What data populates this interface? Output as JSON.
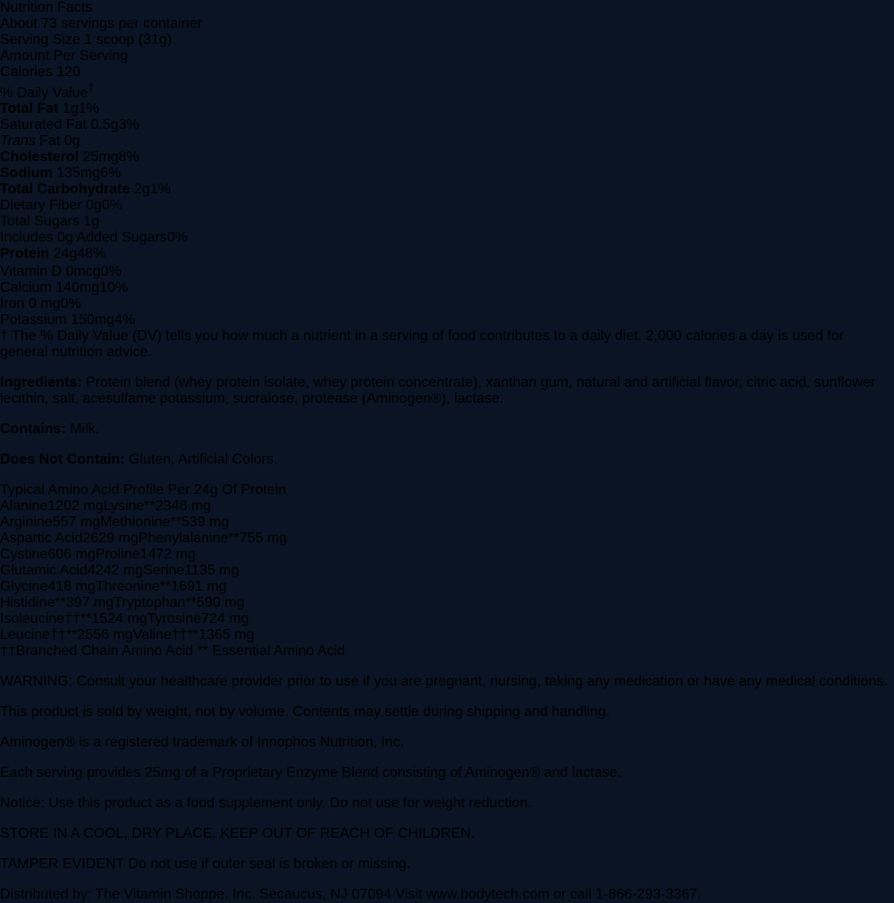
{
  "colors": {
    "background_navy": "#101e31",
    "background_band_blue": "#2d688f",
    "panel_navy": "#121e2e",
    "panel_border_white": "#ffffff",
    "table_row_gray": "#d4d5d0",
    "table_text_dark": "#141d29",
    "text_white": "#f2f5f8"
  },
  "nutrition_panel": {
    "title": "Nutrition Facts",
    "servings": "About 73 servings per container",
    "serving_size_label": "Serving Size",
    "serving_size_value": "1 scoop (31g)",
    "amount_per_serving": "Amount Per Serving",
    "calories_label": "Calories",
    "calories_value": "120",
    "daily_value_header": "% Daily Value",
    "daily_value_dagger": "†",
    "rows": [
      {
        "bold": "Total Fat",
        "text": " 1g",
        "pct": "1%",
        "indent": 0
      },
      {
        "text": "Saturated Fat 0.5g",
        "pct": "3%",
        "indent": 1
      },
      {
        "italic": "Trans",
        "text": " Fat 0g",
        "pct": "",
        "indent": 1
      },
      {
        "bold": "Cholesterol",
        "text": " 25mg",
        "pct": "8%",
        "indent": 0
      },
      {
        "bold": "Sodium",
        "text": " 135mg",
        "pct": "6%",
        "indent": 0
      },
      {
        "bold": "Total Carbohydrate",
        "text": " 2g",
        "pct": "1%",
        "indent": 0
      },
      {
        "text": "Dietary Fiber 0g",
        "pct": "0%",
        "indent": 1
      },
      {
        "text": "Total Sugars 1g",
        "pct": "",
        "indent": 1,
        "rule": "partial"
      },
      {
        "text": "Includes 0g Added Sugars",
        "pct": "0%",
        "indent": 2
      },
      {
        "bold": "Protein",
        "text": " 24g",
        "pct": "48%",
        "indent": 0,
        "rule": "none"
      }
    ],
    "vitamin_rows": [
      {
        "text": "Vitamin D 0mcg",
        "pct": "0%"
      },
      {
        "text": "Calcium 140mg",
        "pct": "10%"
      },
      {
        "text": "Iron 0 mg",
        "pct": "0%"
      },
      {
        "text": "Potassium 150mg",
        "pct": "4%"
      }
    ],
    "footnote_dagger": "†",
    "footnote": "The % Daily Value (DV) tells you how much a nutrient in a serving of food\ncontributes to a daily diet. 2,000 calories a day is used for general\nnutrition advice."
  },
  "ingredients": {
    "label": "Ingredients:",
    "text": " Protein blend (whey protein isolate, whey protein concentrate),\nxanthan gum, natural and artificial flavor, citric acid, sunflower lecithin, salt,\nacesulfame potassium, sucralose, protease (Aminogen®), lactase.",
    "contains_label": "Contains:",
    "contains_text": " Milk.",
    "does_not_contain_label": "Does Not Contain:",
    "does_not_contain_text": " Gluten, Artificial Colors."
  },
  "amino_panel": {
    "title": "Typical Amino Acid Profile Per 24g Of Protein",
    "rows": [
      {
        "n1": "Alanine",
        "v1": "1202 mg",
        "n2": "Lysine**",
        "v2": "2348 mg"
      },
      {
        "n1": "Arginine",
        "v1": "557 mg",
        "n2": "Methionine**",
        "v2": "539 mg"
      },
      {
        "n1": "Aspartic Acid",
        "v1": "2629 mg",
        "n2": "Phenylalanine**",
        "v2": "755 mg"
      },
      {
        "n1": "Cystine",
        "v1": "606 mg",
        "n2": "Proline",
        "v2": "1472 mg"
      },
      {
        "n1": "Glutamic Acid",
        "v1": "4242 mg",
        "n2": "Serine",
        "v2": "1135 mg"
      },
      {
        "n1": "Glycine",
        "v1": "418 mg",
        "n2": "Threonine**",
        "v2": "1691 mg"
      },
      {
        "n1": "Histidine**",
        "v1": "397 mg",
        "n2": "Tryptophan**",
        "v2": "590 mg"
      },
      {
        "n1": "Isoleucine††**",
        "v1": "1524 mg",
        "n2": "Tyrosine",
        "v2": "724 mg"
      },
      {
        "n1": "Leucine††**",
        "v1": "2556 mg",
        "n2": "Valine††**",
        "v2": "1365 mg"
      }
    ],
    "legend_bcaa": "††Branched Chain Amino Acid",
    "legend_eaa": "** Essential Amino Acid"
  },
  "info": {
    "warning": "WARNING: Consult your healthcare provider prior\nto use if you are pregnant, nursing, taking any medication\nor have any medical conditions.",
    "sold_by_weight": "This product is sold by weight, not by volume.\nContents may settle during shipping and handling.",
    "trademark": "Aminogen® is a registered trademark of Innophos\nNutrition, Inc.",
    "enzyme_blend": "Each serving provides 25mg of a Proprietary Enzyme\nBlend consisting of Aminogen® and lactase.",
    "notice": "Notice: Use this product as a food supplement only.\nDo not use for weight reduction.",
    "storage": "STORE IN A COOL, DRY PLACE. KEEP OUT OF REACH OF\nCHILDREN.",
    "tamper": "TAMPER EVIDENT\nDo not use if outer seal is broken or missing.",
    "distributor": "Distributed by: The Vitamin Shoppe, Inc.\nSecaucus, NJ 07094\nVisit www.bodytech.com or call 1-866-293-3367."
  }
}
